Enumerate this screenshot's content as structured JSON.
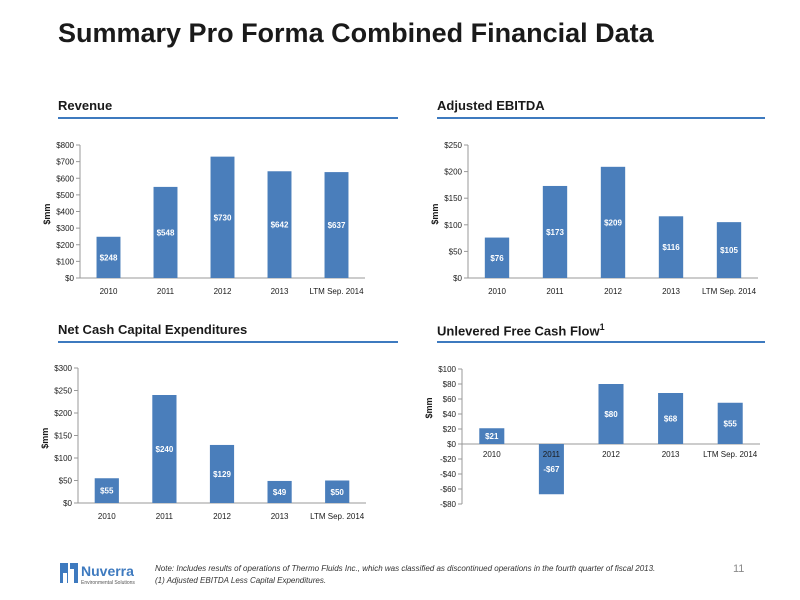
{
  "page": {
    "title": "Summary Pro Forma Combined Financial Data",
    "page_number": "11",
    "note_line1": "Note:  Includes results of operations of Thermo Fluids Inc., which was classified as discontinued operations in the fourth quarter of fiscal 2013.",
    "note_line2": "(1)     Adjusted EBITDA Less Capital Expenditures.",
    "logo_text": "Nuverra",
    "logo_subtext": "Environmental Solutions",
    "accent_color": "#3e7abf",
    "bar_color": "#4a7ebb"
  },
  "chart_data": [
    {
      "id": "revenue",
      "type": "bar",
      "title": "Revenue",
      "title_sup": "",
      "ylabel": "$mm",
      "categories": [
        "2010",
        "2011",
        "2012",
        "2013",
        "LTM Sep. 2014"
      ],
      "values": [
        248,
        548,
        730,
        642,
        637
      ],
      "data_labels": [
        "$248",
        "$548",
        "$730",
        "$642",
        "$637"
      ],
      "ylim": [
        0,
        800
      ],
      "yticks": [
        0,
        100,
        200,
        300,
        400,
        500,
        600,
        700,
        800
      ],
      "ytick_labels": [
        "$0",
        "$100",
        "$200",
        "$300",
        "$400",
        "$500",
        "$600",
        "$700",
        "$800"
      ]
    },
    {
      "id": "ebitda",
      "type": "bar",
      "title": "Adjusted EBITDA",
      "title_sup": "",
      "ylabel": "$mm",
      "categories": [
        "2010",
        "2011",
        "2012",
        "2013",
        "LTM Sep. 2014"
      ],
      "values": [
        76,
        173,
        209,
        116,
        105
      ],
      "data_labels": [
        "$76",
        "$173",
        "$209",
        "$116",
        "$105"
      ],
      "ylim": [
        0,
        250
      ],
      "yticks": [
        0,
        50,
        100,
        150,
        200,
        250
      ],
      "ytick_labels": [
        "$0",
        "$50",
        "$100",
        "$150",
        "$200",
        "$250"
      ]
    },
    {
      "id": "capex",
      "type": "bar",
      "title": "Net Cash Capital Expenditures",
      "title_sup": "",
      "ylabel": "$mm",
      "categories": [
        "2010",
        "2011",
        "2012",
        "2013",
        "LTM Sep. 2014"
      ],
      "values": [
        55,
        240,
        129,
        49,
        50
      ],
      "data_labels": [
        "$55",
        "$240",
        "$129",
        "$49",
        "$50"
      ],
      "ylim": [
        0,
        300
      ],
      "yticks": [
        0,
        50,
        100,
        150,
        200,
        250,
        300
      ],
      "ytick_labels": [
        "$0",
        "$50",
        "$100",
        "$150",
        "$200",
        "$250",
        "$300"
      ]
    },
    {
      "id": "ufcf",
      "type": "bar",
      "title": "Unlevered Free Cash Flow",
      "title_sup": "1",
      "ylabel": "$mm",
      "categories": [
        "2010",
        "2011",
        "2012",
        "2013",
        "LTM Sep. 2014"
      ],
      "values": [
        21,
        -67,
        80,
        68,
        55
      ],
      "data_labels": [
        "$21",
        "-$67",
        "$80",
        "$68",
        "$55"
      ],
      "ylim": [
        -80,
        100
      ],
      "yticks": [
        -80,
        -60,
        -40,
        -20,
        0,
        20,
        40,
        60,
        80,
        100
      ],
      "ytick_labels": [
        "-$80",
        "-$60",
        "-$40",
        "-$20",
        "$0",
        "$20",
        "$40",
        "$60",
        "$80",
        "$100"
      ]
    }
  ]
}
